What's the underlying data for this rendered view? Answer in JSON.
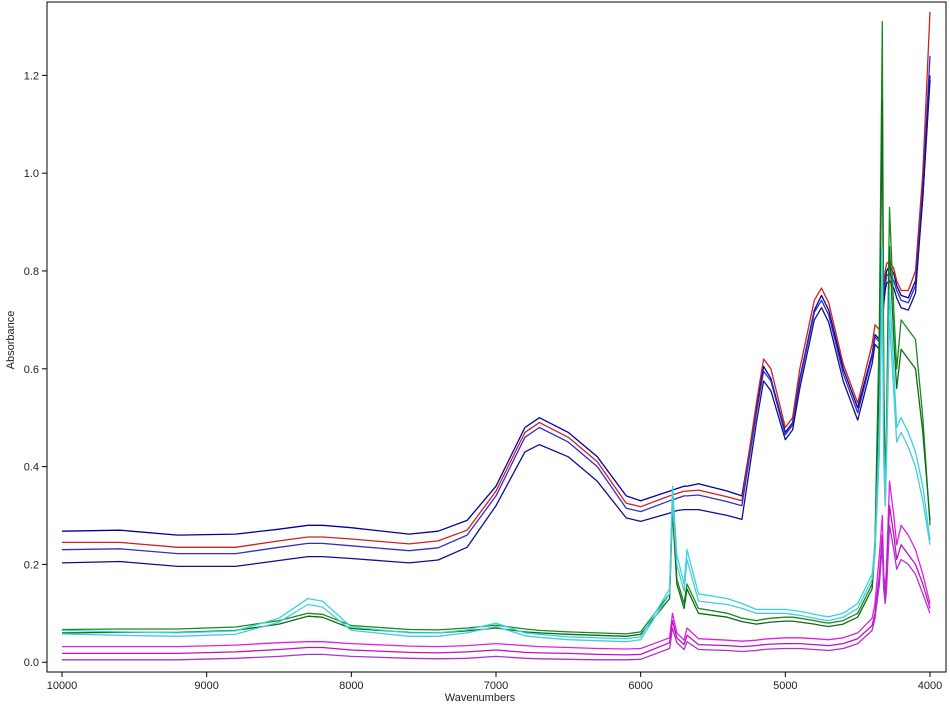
{
  "chart_data": {
    "type": "line",
    "title": "",
    "xlabel": "Wavenumbers",
    "ylabel": "Absorbance",
    "xlim": [
      10000,
      4000
    ],
    "ylim": [
      -0.02,
      1.35
    ],
    "x_reversed": true,
    "grid": false,
    "legend": "none",
    "x_ticks": [
      10000,
      9000,
      8000,
      7000,
      6000,
      5000,
      4000
    ],
    "x_tick_labels": [
      "10000",
      "9000",
      "8000",
      "7000",
      "6000",
      "5000",
      "4000"
    ],
    "y_ticks": [
      0.0,
      0.2,
      0.4,
      0.6,
      0.8,
      1.0,
      1.2
    ],
    "y_tick_labels": [
      "0.0",
      "0.2",
      "0.4",
      "0.6",
      "0.8",
      "1.0",
      "1.2"
    ],
    "x": [
      10000,
      9600,
      9200,
      8800,
      8500,
      8300,
      8200,
      8000,
      7600,
      7400,
      7200,
      7000,
      6800,
      6700,
      6500,
      6300,
      6100,
      6000,
      5800,
      5780,
      5750,
      5700,
      5680,
      5600,
      5400,
      5300,
      5200,
      5150,
      5100,
      5000,
      4950,
      4900,
      4800,
      4750,
      4700,
      4600,
      4500,
      4400,
      4380,
      4350,
      4330,
      4320,
      4310,
      4300,
      4280,
      4250,
      4230,
      4200,
      4150,
      4100,
      4050,
      4000
    ],
    "series": [
      {
        "color": "#0000a0",
        "values": [
          0.268,
          0.27,
          0.26,
          0.262,
          0.272,
          0.28,
          0.28,
          0.275,
          0.262,
          0.268,
          0.29,
          0.36,
          0.48,
          0.5,
          0.47,
          0.42,
          0.34,
          0.33,
          0.35,
          0.352,
          0.355,
          0.36,
          0.36,
          0.365,
          0.35,
          0.34,
          0.52,
          0.605,
          0.58,
          0.47,
          0.49,
          0.58,
          0.72,
          0.75,
          0.72,
          0.6,
          0.52,
          0.63,
          0.67,
          0.66,
          0.7,
          0.75,
          0.78,
          0.8,
          0.81,
          0.795,
          0.77,
          0.75,
          0.745,
          0.78,
          0.95,
          1.19
        ]
      },
      {
        "color": "#d02020",
        "values": [
          0.245,
          0.245,
          0.235,
          0.235,
          0.248,
          0.256,
          0.256,
          0.252,
          0.242,
          0.248,
          0.27,
          0.35,
          0.47,
          0.49,
          0.46,
          0.41,
          0.325,
          0.318,
          0.34,
          0.342,
          0.345,
          0.35,
          0.35,
          0.352,
          0.338,
          0.33,
          0.53,
          0.62,
          0.6,
          0.48,
          0.5,
          0.6,
          0.74,
          0.765,
          0.735,
          0.61,
          0.53,
          0.65,
          0.69,
          0.68,
          0.72,
          0.77,
          0.8,
          0.815,
          0.82,
          0.805,
          0.78,
          0.76,
          0.76,
          0.8,
          1.0,
          1.33
        ]
      },
      {
        "color": "#3030c8",
        "values": [
          0.23,
          0.232,
          0.222,
          0.222,
          0.235,
          0.243,
          0.243,
          0.238,
          0.228,
          0.234,
          0.26,
          0.34,
          0.46,
          0.48,
          0.45,
          0.4,
          0.315,
          0.308,
          0.33,
          0.332,
          0.335,
          0.34,
          0.34,
          0.342,
          0.328,
          0.32,
          0.51,
          0.595,
          0.575,
          0.465,
          0.485,
          0.575,
          0.715,
          0.74,
          0.71,
          0.59,
          0.51,
          0.625,
          0.665,
          0.655,
          0.695,
          0.745,
          0.77,
          0.79,
          0.795,
          0.78,
          0.76,
          0.74,
          0.735,
          0.77,
          0.97,
          1.24
        ]
      },
      {
        "color": "#10108a",
        "values": [
          0.203,
          0.206,
          0.196,
          0.196,
          0.208,
          0.216,
          0.216,
          0.212,
          0.203,
          0.209,
          0.235,
          0.32,
          0.43,
          0.445,
          0.42,
          0.37,
          0.295,
          0.288,
          0.305,
          0.307,
          0.31,
          0.312,
          0.312,
          0.312,
          0.3,
          0.292,
          0.49,
          0.575,
          0.555,
          0.455,
          0.475,
          0.56,
          0.7,
          0.725,
          0.695,
          0.575,
          0.495,
          0.61,
          0.65,
          0.64,
          0.68,
          0.73,
          0.76,
          0.775,
          0.78,
          0.765,
          0.745,
          0.725,
          0.72,
          0.755,
          0.95,
          1.2
        ]
      },
      {
        "color": "#1a8a1a",
        "values": [
          0.067,
          0.068,
          0.068,
          0.072,
          0.085,
          0.1,
          0.098,
          0.075,
          0.067,
          0.066,
          0.07,
          0.076,
          0.068,
          0.065,
          0.062,
          0.06,
          0.058,
          0.062,
          0.14,
          0.34,
          0.17,
          0.12,
          0.16,
          0.11,
          0.1,
          0.09,
          0.085,
          0.088,
          0.09,
          0.092,
          0.092,
          0.09,
          0.085,
          0.082,
          0.08,
          0.085,
          0.1,
          0.16,
          0.25,
          0.7,
          1.31,
          0.6,
          0.35,
          0.5,
          0.93,
          0.72,
          0.6,
          0.7,
          0.68,
          0.66,
          0.5,
          0.28
        ]
      },
      {
        "color": "#0f6a1a",
        "values": [
          0.06,
          0.061,
          0.061,
          0.065,
          0.078,
          0.094,
          0.092,
          0.069,
          0.061,
          0.06,
          0.064,
          0.07,
          0.062,
          0.06,
          0.057,
          0.055,
          0.053,
          0.057,
          0.13,
          0.31,
          0.16,
          0.11,
          0.15,
          0.1,
          0.092,
          0.083,
          0.078,
          0.08,
          0.082,
          0.084,
          0.084,
          0.082,
          0.078,
          0.075,
          0.073,
          0.078,
          0.092,
          0.15,
          0.23,
          0.6,
          1.15,
          0.55,
          0.32,
          0.45,
          0.85,
          0.66,
          0.56,
          0.64,
          0.62,
          0.6,
          0.47,
          0.29
        ]
      },
      {
        "color": "#30d8e0",
        "values": [
          0.065,
          0.062,
          0.06,
          0.064,
          0.09,
          0.13,
          0.125,
          0.072,
          0.06,
          0.06,
          0.066,
          0.08,
          0.06,
          0.057,
          0.052,
          0.05,
          0.048,
          0.052,
          0.15,
          0.36,
          0.22,
          0.16,
          0.23,
          0.14,
          0.13,
          0.12,
          0.108,
          0.108,
          0.108,
          0.108,
          0.106,
          0.104,
          0.098,
          0.095,
          0.093,
          0.1,
          0.12,
          0.18,
          0.24,
          0.48,
          0.85,
          0.45,
          0.35,
          0.45,
          0.76,
          0.6,
          0.48,
          0.5,
          0.47,
          0.43,
          0.36,
          0.25
        ]
      },
      {
        "color": "#50c8d8",
        "values": [
          0.058,
          0.055,
          0.053,
          0.057,
          0.082,
          0.118,
          0.113,
          0.065,
          0.053,
          0.053,
          0.06,
          0.073,
          0.054,
          0.051,
          0.046,
          0.044,
          0.042,
          0.046,
          0.14,
          0.33,
          0.2,
          0.145,
          0.21,
          0.125,
          0.118,
          0.11,
          0.1,
          0.1,
          0.1,
          0.1,
          0.098,
          0.096,
          0.09,
          0.087,
          0.085,
          0.092,
          0.11,
          0.17,
          0.22,
          0.43,
          0.78,
          0.41,
          0.32,
          0.42,
          0.7,
          0.55,
          0.45,
          0.47,
          0.44,
          0.4,
          0.33,
          0.24
        ]
      },
      {
        "color": "#e020e0",
        "values": [
          0.032,
          0.032,
          0.032,
          0.035,
          0.04,
          0.042,
          0.042,
          0.038,
          0.033,
          0.032,
          0.034,
          0.038,
          0.034,
          0.032,
          0.03,
          0.028,
          0.027,
          0.028,
          0.05,
          0.1,
          0.06,
          0.045,
          0.07,
          0.048,
          0.045,
          0.043,
          0.045,
          0.047,
          0.048,
          0.05,
          0.05,
          0.05,
          0.048,
          0.047,
          0.046,
          0.05,
          0.06,
          0.09,
          0.12,
          0.22,
          0.3,
          0.18,
          0.15,
          0.2,
          0.37,
          0.3,
          0.24,
          0.28,
          0.26,
          0.23,
          0.18,
          0.12
        ]
      },
      {
        "color": "#c010c0",
        "values": [
          0.018,
          0.018,
          0.018,
          0.021,
          0.026,
          0.03,
          0.03,
          0.025,
          0.02,
          0.019,
          0.021,
          0.025,
          0.02,
          0.019,
          0.018,
          0.016,
          0.015,
          0.016,
          0.04,
          0.085,
          0.05,
          0.036,
          0.055,
          0.036,
          0.034,
          0.032,
          0.034,
          0.036,
          0.037,
          0.038,
          0.038,
          0.038,
          0.036,
          0.035,
          0.034,
          0.038,
          0.048,
          0.075,
          0.1,
          0.18,
          0.26,
          0.16,
          0.13,
          0.17,
          0.32,
          0.26,
          0.21,
          0.24,
          0.22,
          0.2,
          0.16,
          0.11
        ]
      },
      {
        "color": "#b030d0",
        "values": [
          0.005,
          0.005,
          0.005,
          0.008,
          0.012,
          0.016,
          0.016,
          0.012,
          0.008,
          0.007,
          0.008,
          0.012,
          0.008,
          0.007,
          0.006,
          0.005,
          0.005,
          0.006,
          0.028,
          0.07,
          0.04,
          0.026,
          0.042,
          0.026,
          0.024,
          0.022,
          0.024,
          0.026,
          0.027,
          0.028,
          0.028,
          0.028,
          0.026,
          0.025,
          0.024,
          0.028,
          0.038,
          0.065,
          0.09,
          0.16,
          0.24,
          0.15,
          0.12,
          0.15,
          0.28,
          0.23,
          0.19,
          0.21,
          0.2,
          0.18,
          0.14,
          0.1
        ]
      }
    ]
  }
}
